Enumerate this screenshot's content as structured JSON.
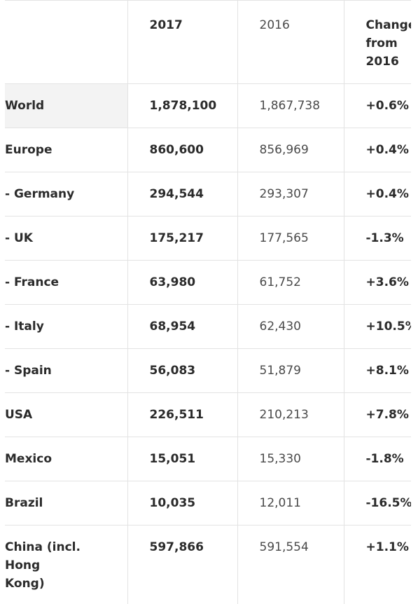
{
  "table": {
    "headers": [
      "",
      "2017",
      "2016",
      "Change from 2016"
    ],
    "rows": [
      {
        "region": "World",
        "y2017": "1,878,100",
        "y2016": "1,867,738",
        "change": "+0.6%"
      },
      {
        "region": "Europe",
        "y2017": "860,600",
        "y2016": "856,969",
        "change": "+0.4%"
      },
      {
        "region": "- Germany",
        "y2017": "294,544",
        "y2016": "293,307",
        "change": "+0.4%"
      },
      {
        "region": "- UK",
        "y2017": "175,217",
        "y2016": "177,565",
        "change": "-1.3%"
      },
      {
        "region": "- France",
        "y2017": "63,980",
        "y2016": "61,752",
        "change": "+3.6%"
      },
      {
        "region": "- Italy",
        "y2017": "68,954",
        "y2016": "62,430",
        "change": "+10.5%"
      },
      {
        "region": "- Spain",
        "y2017": "56,083",
        "y2016": "51,879",
        "change": "+8.1%"
      },
      {
        "region": "USA",
        "y2017": "226,511",
        "y2016": "210,213",
        "change": "+7.8%"
      },
      {
        "region": "Mexico",
        "y2017": "15,051",
        "y2016": "15,330",
        "change": "-1.8%"
      },
      {
        "region": "Brazil",
        "y2017": "10,035",
        "y2016": "12,011",
        "change": "-16.5%"
      },
      {
        "region": "China (incl. Hong Kong)",
        "y2017": "597,866",
        "y2016": "591,554",
        "change": "+1.1%"
      }
    ]
  },
  "colors": {
    "border": "#e3e3e3",
    "highlight": "#f3f3f3",
    "text": "#2b2b2b"
  }
}
